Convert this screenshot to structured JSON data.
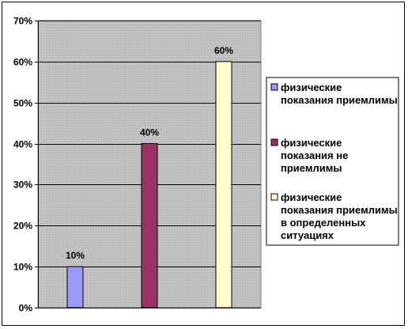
{
  "chart_data": {
    "type": "bar",
    "categories": [
      "физические показания приемлимы",
      "физические показания не приемлимы",
      "физические показания приемлимы в определенных ситуациях"
    ],
    "values": [
      10,
      40,
      60
    ],
    "data_labels": [
      "10%",
      "40%",
      "60%"
    ],
    "ylim": [
      0,
      70
    ],
    "yticks": [
      0,
      10,
      20,
      30,
      40,
      50,
      60,
      70
    ],
    "ytick_labels": [
      "0%",
      "10%",
      "20%",
      "30%",
      "40%",
      "50%",
      "60%",
      "70%"
    ],
    "grid": true,
    "legend_position": "right",
    "colors": {
      "plot_background": "#c0c0c0",
      "series": [
        "#9999ff",
        "#993366",
        "#ffffcc"
      ]
    },
    "legend": [
      {
        "lines": [
          "физические",
          "показания приемлимы"
        ]
      },
      {
        "lines": [
          "физические",
          "показания не",
          "приемлимы"
        ]
      },
      {
        "lines": [
          "физические",
          "показания приемлимы",
          "в определенных",
          "ситуациях"
        ]
      }
    ]
  }
}
